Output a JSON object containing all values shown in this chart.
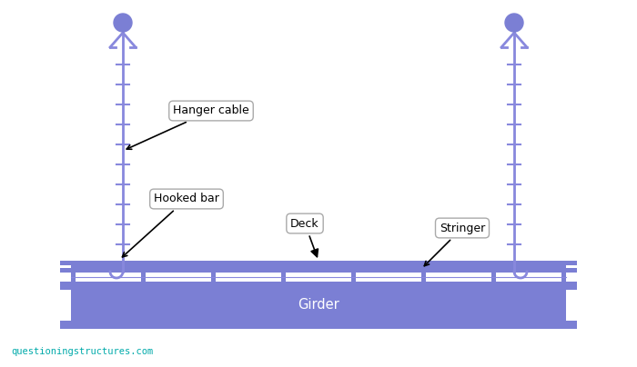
{
  "bg_color": "#ffffff",
  "bridge_color": "#7b7fd4",
  "line_color": "#8888dd",
  "text_color": "#000000",
  "watermark_color": "#00aaaa",
  "watermark": "questioningstructures.com",
  "labels": {
    "hanger_cable": "Hanger cable",
    "hooked_bar": "Hooked bar",
    "deck": "Deck",
    "stringer": "Stringer",
    "girder": "Girder"
  },
  "fig_width": 7.0,
  "fig_height": 4.04,
  "dpi": 100
}
